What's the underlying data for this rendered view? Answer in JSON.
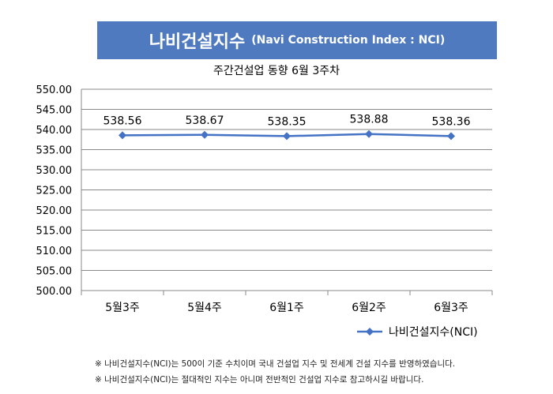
{
  "banner": {
    "title": "나비건설지수",
    "subtitle": "(Navi Construction Index : NCI)"
  },
  "chart_data": {
    "type": "line",
    "title": "주간건설업 동향 6월 3주차",
    "categories": [
      "5월3주",
      "5월4주",
      "6월1주",
      "6월2주",
      "6월3주"
    ],
    "series": [
      {
        "name": "나비건설지수(NCI)",
        "values": [
          538.56,
          538.67,
          538.35,
          538.88,
          538.36
        ]
      }
    ],
    "data_labels": [
      "538.56",
      "538.67",
      "538.35",
      "538.88",
      "538.36"
    ],
    "yticks": [
      "500.00",
      "505.00",
      "510.00",
      "515.00",
      "520.00",
      "525.00",
      "530.00",
      "535.00",
      "540.00",
      "545.00",
      "550.00"
    ],
    "ylim": [
      500,
      550
    ],
    "grid": true,
    "legend": "bottom-right",
    "colors": {
      "line": "#4472c4",
      "grid": "#898989"
    }
  },
  "notes": [
    "※ 나비건설지수(NCI)는 500이 기준 수치이며 국내 건설업 지수 및 전세계 건설 지수를 반영하였습니다.",
    "※ 나비건설지수(NCI)는 절대적인 지수는 아니며 전반적인 건설업 지수로 참고하시길 바랍니다."
  ]
}
